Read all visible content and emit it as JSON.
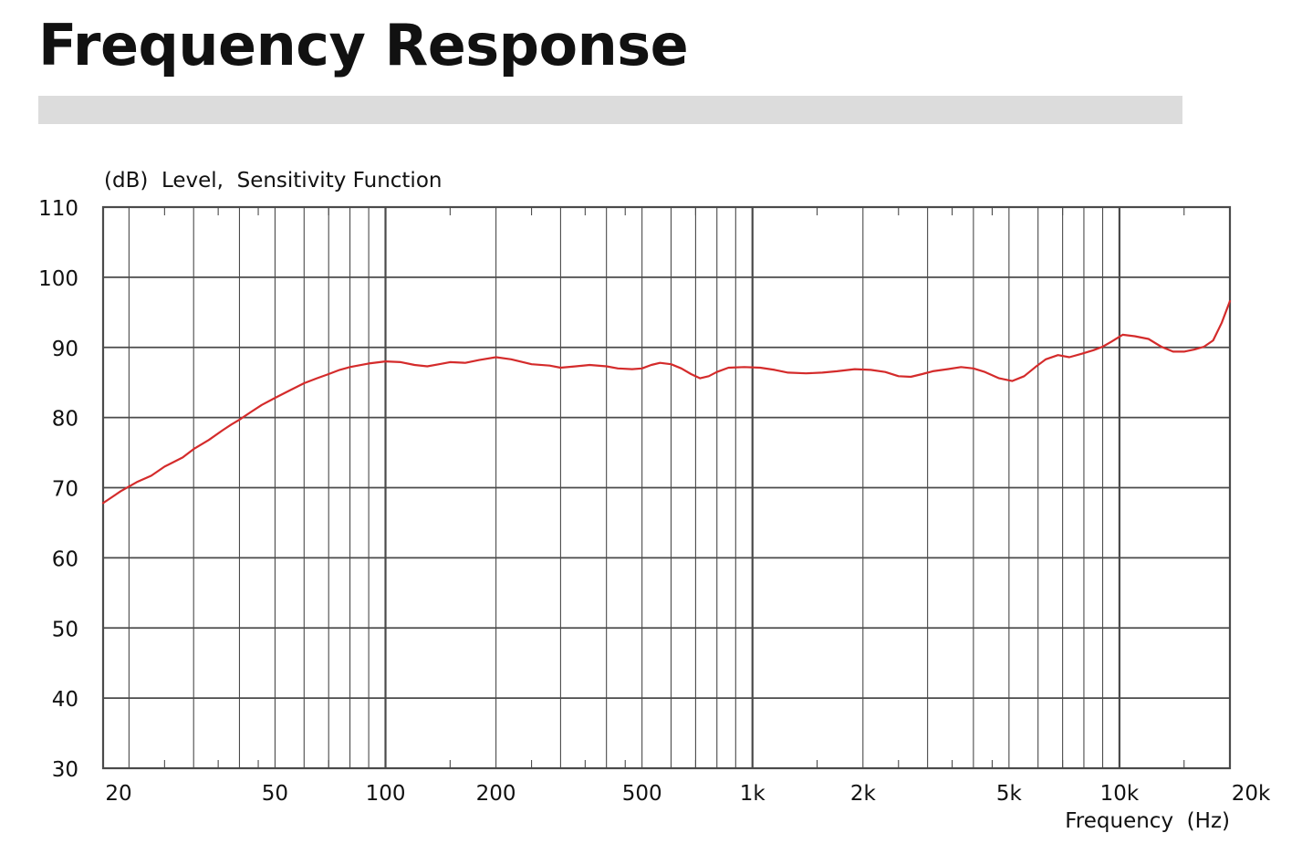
{
  "page": {
    "title": "Frequency Response"
  },
  "chart_data": {
    "type": "line",
    "title": "",
    "ylabel": "(dB)  Level,  Sensitivity Function",
    "xlabel": "Frequency  (Hz)",
    "x_scale": "log",
    "xlim": [
      17,
      20000
    ],
    "ylim": [
      30,
      110
    ],
    "grid": true,
    "xticks": [
      {
        "value": 20,
        "label": "20"
      },
      {
        "value": 50,
        "label": "50"
      },
      {
        "value": 100,
        "label": "100"
      },
      {
        "value": 200,
        "label": "200"
      },
      {
        "value": 500,
        "label": "500"
      },
      {
        "value": 1000,
        "label": "1k"
      },
      {
        "value": 2000,
        "label": "2k"
      },
      {
        "value": 5000,
        "label": "5k"
      },
      {
        "value": 10000,
        "label": "10k"
      },
      {
        "value": 20000,
        "label": "20k"
      }
    ],
    "yticks": [
      {
        "value": 110,
        "label": "110"
      },
      {
        "value": 100,
        "label": "100"
      },
      {
        "value": 90,
        "label": "90"
      },
      {
        "value": 80,
        "label": "80"
      },
      {
        "value": 70,
        "label": "70"
      },
      {
        "value": 60,
        "label": "60"
      },
      {
        "value": 50,
        "label": "50"
      },
      {
        "value": 40,
        "label": "40"
      },
      {
        "value": 30,
        "label": "30"
      }
    ],
    "colors": {
      "series": "#d42b2b",
      "grid": "#4a4a4a",
      "title_bar": "#dcdcdc"
    },
    "series": [
      {
        "color": "#d42b2b",
        "points": [
          [
            17,
            67.8
          ],
          [
            19,
            69.5
          ],
          [
            21,
            70.8
          ],
          [
            23,
            71.7
          ],
          [
            25,
            73.0
          ],
          [
            28,
            74.3
          ],
          [
            30,
            75.5
          ],
          [
            33,
            76.8
          ],
          [
            36,
            78.2
          ],
          [
            38,
            79.0
          ],
          [
            40,
            79.7
          ],
          [
            43,
            80.8
          ],
          [
            46,
            81.8
          ],
          [
            50,
            82.8
          ],
          [
            55,
            83.9
          ],
          [
            60,
            84.9
          ],
          [
            65,
            85.6
          ],
          [
            70,
            86.2
          ],
          [
            75,
            86.8
          ],
          [
            80,
            87.2
          ],
          [
            90,
            87.7
          ],
          [
            100,
            88.0
          ],
          [
            110,
            87.9
          ],
          [
            120,
            87.5
          ],
          [
            130,
            87.3
          ],
          [
            140,
            87.6
          ],
          [
            150,
            87.9
          ],
          [
            165,
            87.8
          ],
          [
            180,
            88.2
          ],
          [
            200,
            88.6
          ],
          [
            220,
            88.3
          ],
          [
            250,
            87.6
          ],
          [
            280,
            87.4
          ],
          [
            300,
            87.1
          ],
          [
            330,
            87.3
          ],
          [
            360,
            87.5
          ],
          [
            400,
            87.3
          ],
          [
            430,
            87.0
          ],
          [
            470,
            86.9
          ],
          [
            500,
            87.0
          ],
          [
            530,
            87.5
          ],
          [
            560,
            87.8
          ],
          [
            600,
            87.6
          ],
          [
            640,
            87.0
          ],
          [
            680,
            86.2
          ],
          [
            720,
            85.6
          ],
          [
            760,
            85.9
          ],
          [
            800,
            86.5
          ],
          [
            860,
            87.1
          ],
          [
            950,
            87.2
          ],
          [
            1050,
            87.1
          ],
          [
            1150,
            86.8
          ],
          [
            1250,
            86.4
          ],
          [
            1400,
            86.3
          ],
          [
            1550,
            86.4
          ],
          [
            1700,
            86.6
          ],
          [
            1900,
            86.9
          ],
          [
            2100,
            86.8
          ],
          [
            2300,
            86.5
          ],
          [
            2500,
            85.9
          ],
          [
            2700,
            85.8
          ],
          [
            2900,
            86.2
          ],
          [
            3100,
            86.6
          ],
          [
            3400,
            86.9
          ],
          [
            3700,
            87.2
          ],
          [
            4000,
            87.0
          ],
          [
            4300,
            86.5
          ],
          [
            4700,
            85.6
          ],
          [
            5100,
            85.2
          ],
          [
            5500,
            85.9
          ],
          [
            5900,
            87.2
          ],
          [
            6300,
            88.3
          ],
          [
            6800,
            88.9
          ],
          [
            7300,
            88.6
          ],
          [
            7900,
            89.1
          ],
          [
            8500,
            89.6
          ],
          [
            9000,
            90.1
          ],
          [
            9500,
            90.8
          ],
          [
            10200,
            91.8
          ],
          [
            11000,
            91.6
          ],
          [
            12000,
            91.2
          ],
          [
            13000,
            90.1
          ],
          [
            14000,
            89.4
          ],
          [
            15000,
            89.4
          ],
          [
            16000,
            89.7
          ],
          [
            17000,
            90.1
          ],
          [
            18000,
            91.0
          ],
          [
            19000,
            93.5
          ],
          [
            20000,
            96.6
          ]
        ]
      }
    ]
  }
}
